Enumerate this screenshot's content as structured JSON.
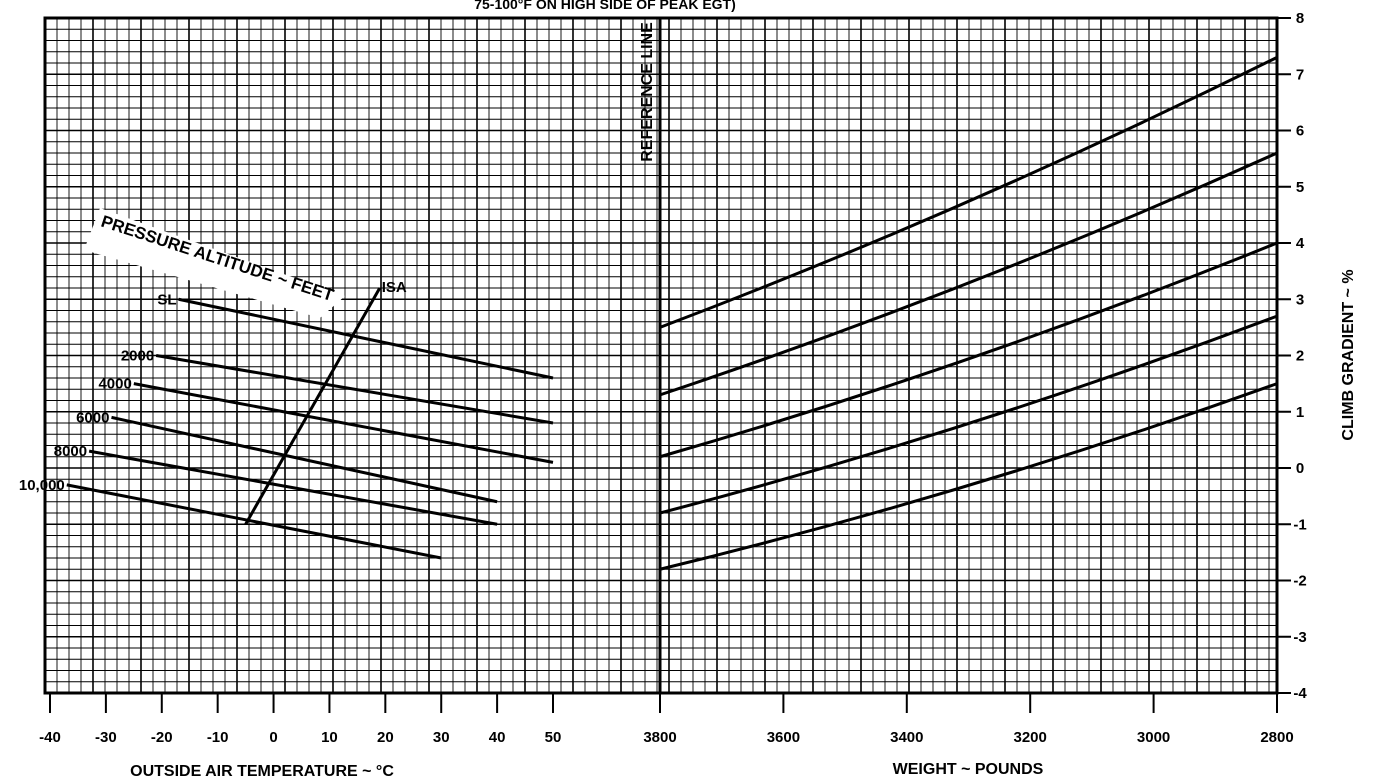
{
  "chart_data": [
    {
      "type": "line",
      "title": "75-100°F ON HIGH SIDE OF PEAK EGT)",
      "xlabel": "OUTSIDE AIR TEMPERATURE ~ °C",
      "ylabel": "",
      "xlim": [
        -40,
        50
      ],
      "x_ticks": [
        "-40",
        "-30",
        "-20",
        "-10",
        "0",
        "10",
        "20",
        "30",
        "40",
        "50"
      ],
      "grid": true,
      "annotations": [
        "PRESSURE ALTITUDE ~ FEET",
        "ISA"
      ],
      "series": [
        {
          "name": "SL",
          "x": [
            -17,
            50
          ],
          "y": [
            3.0,
            1.6
          ]
        },
        {
          "name": "2000",
          "x": [
            -21,
            50
          ],
          "y": [
            2.0,
            0.8
          ]
        },
        {
          "name": "4000",
          "x": [
            -25,
            50
          ],
          "y": [
            1.5,
            0.1
          ]
        },
        {
          "name": "6000",
          "x": [
            -29,
            40
          ],
          "y": [
            0.9,
            -0.6
          ]
        },
        {
          "name": "8000",
          "x": [
            -33,
            40
          ],
          "y": [
            0.3,
            -1.0
          ]
        },
        {
          "name": "10,000",
          "x": [
            -37,
            30
          ],
          "y": [
            -0.3,
            -1.6
          ]
        },
        {
          "name": "ISA",
          "x": [
            -5,
            19
          ],
          "y": [
            -1.0,
            3.2
          ]
        }
      ]
    },
    {
      "type": "line",
      "title": "",
      "xlabel": "WEIGHT ~ POUNDS",
      "ylabel": "CLIMB GRADIENT ~ %",
      "xlim": [
        3800,
        2800
      ],
      "ylim": [
        -4,
        8
      ],
      "x_ticks": [
        "3800",
        "3600",
        "3400",
        "3200",
        "3000",
        "2800"
      ],
      "y_ticks": [
        "8",
        "7",
        "6",
        "5",
        "4",
        "3",
        "2",
        "1",
        "0",
        "-1",
        "-2",
        "-3",
        "-4"
      ],
      "reference_line": "REFERENCE LINE",
      "grid": true,
      "series": [
        {
          "x": [
            3800,
            2800
          ],
          "y": [
            2.5,
            7.3
          ]
        },
        {
          "x": [
            3800,
            2800
          ],
          "y": [
            1.3,
            5.6
          ]
        },
        {
          "x": [
            3800,
            2800
          ],
          "y": [
            0.2,
            4.0
          ]
        },
        {
          "x": [
            3800,
            2800
          ],
          "y": [
            -0.8,
            2.7
          ]
        },
        {
          "x": [
            3800,
            2800
          ],
          "y": [
            -1.8,
            1.5
          ]
        }
      ]
    }
  ]
}
